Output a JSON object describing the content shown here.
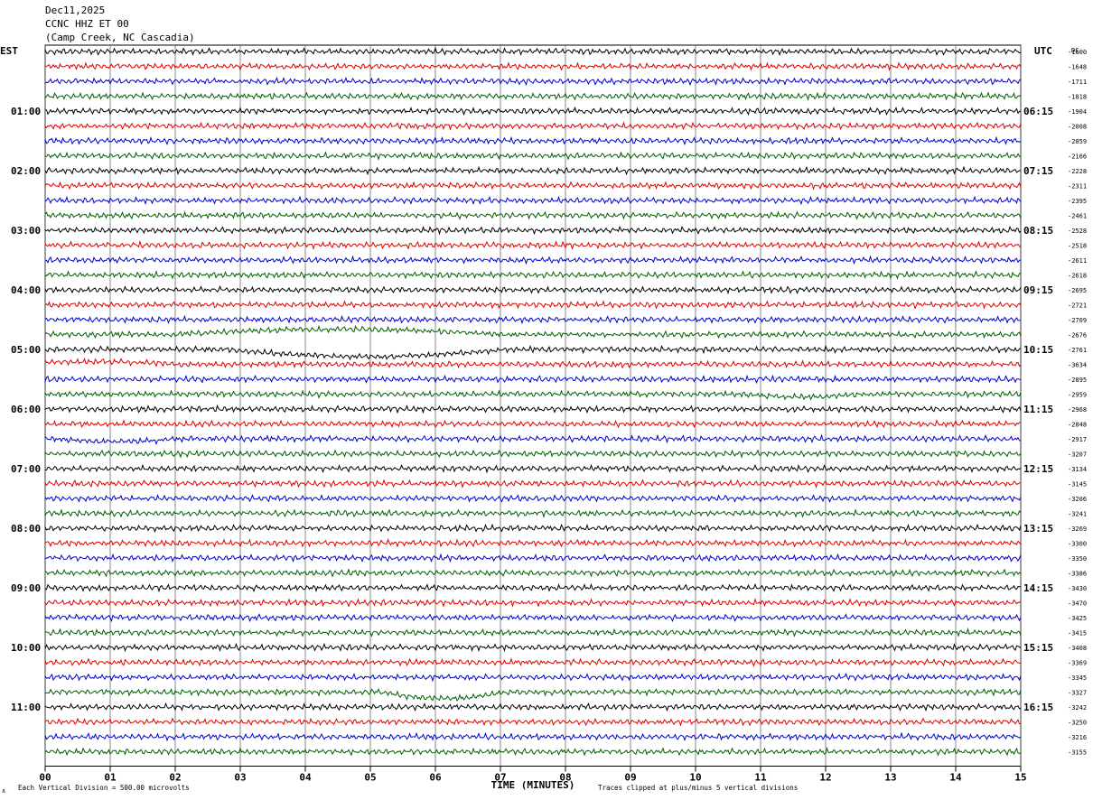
{
  "header": {
    "date": "Dec11,2025",
    "station": "CCNC HHZ ET 00",
    "location": "(Camp Creek, NC Cascadia)"
  },
  "left_axis_label": "EST",
  "right_axis_label": "UTC",
  "dc_label": "DC",
  "x_axis_title": "TIME (MINUTES)",
  "footer_left": "Each Vertical Division =  500.00 microvolts",
  "footer_right": "Traces clipped at plus/minus 5 vertical divisions",
  "footer_mark": "∧",
  "colors": {
    "trace_cycle": [
      "#000000",
      "#e00000",
      "#0000d0",
      "#006000"
    ],
    "grid": "#555555"
  },
  "chart_data": {
    "type": "line",
    "description_type": "helicorder",
    "x_ticks": [
      "00",
      "01",
      "02",
      "03",
      "04",
      "05",
      "06",
      "07",
      "08",
      "09",
      "10",
      "11",
      "12",
      "13",
      "14",
      "15"
    ],
    "xlim": [
      0,
      15
    ],
    "rows_per_hour": 4,
    "left_hour_labels": [
      "01:00",
      "02:00",
      "03:00",
      "04:00",
      "05:00",
      "06:00",
      "07:00",
      "08:00",
      "09:00",
      "10:00",
      "11:00"
    ],
    "right_hour_labels": [
      "06:15",
      "07:15",
      "08:15",
      "09:15",
      "10:15",
      "11:15",
      "12:15",
      "13:15",
      "14:15",
      "15:15",
      "16:15"
    ],
    "dc_offsets": [
      "-1600",
      "-1648",
      "-1711",
      "-1818",
      "-1904",
      "-2008",
      "-2059",
      "-2166",
      "-2228",
      "-2311",
      "-2395",
      "-2461",
      "-2528",
      "-2518",
      "-2611",
      "-2618",
      "-2695",
      "-2721",
      "-2709",
      "-2676",
      "-2761",
      "-3634",
      "-2895",
      "-2959",
      "-2968",
      "-2848",
      "-2917",
      "-3207",
      "-3134",
      "-3145",
      "-3206",
      "-3241",
      "-3269",
      "-3300",
      "-3350",
      "-3386",
      "-3430",
      "-3470",
      "-3425",
      "-3415",
      "-3408",
      "-3369",
      "-3345",
      "-3327",
      "-3242",
      "-3250",
      "-3216",
      "-3155"
    ]
  }
}
